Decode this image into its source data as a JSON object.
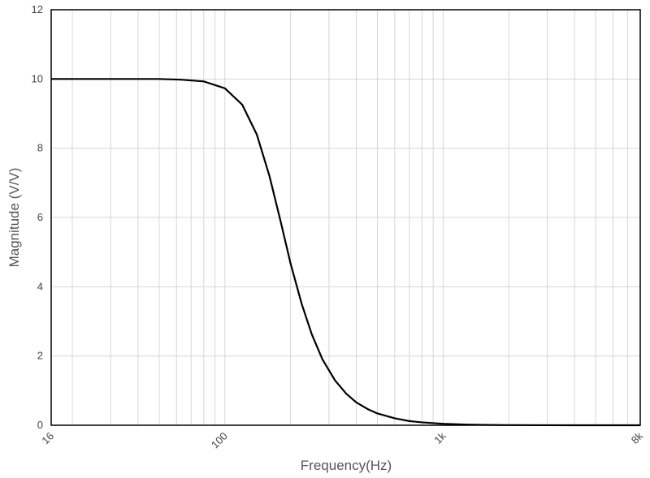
{
  "chart_data": {
    "type": "line",
    "x_label": "Frequency(Hz)",
    "y_label": "Magnitude (V/V)",
    "xscale": "log",
    "xlim": [
      16,
      8000
    ],
    "ylim": [
      0,
      12
    ],
    "xticks": [
      16,
      100,
      {
        "value": 1000,
        "label": "1k"
      },
      {
        "value": 8000,
        "label": "8k"
      }
    ],
    "x_minor_gridlines": [
      20,
      30,
      40,
      50,
      60,
      70,
      80,
      90,
      200,
      300,
      400,
      500,
      600,
      700,
      800,
      900,
      2000,
      3000,
      4000,
      5000,
      6000,
      7000
    ],
    "yticks": [
      0,
      2,
      4,
      6,
      8,
      10,
      12
    ],
    "grid": true,
    "x": [
      16,
      20,
      25,
      32,
      40,
      50,
      63,
      80,
      100,
      120,
      140,
      160,
      180,
      200,
      225,
      250,
      280,
      320,
      360,
      400,
      450,
      500,
      600,
      700,
      800,
      1000,
      1300,
      1600,
      2000,
      3000,
      4000,
      6000,
      8000
    ],
    "series": [
      {
        "color": "#000000",
        "values": [
          10.0,
          10.0,
          10.0,
          10.0,
          10.0,
          10.0,
          9.98,
          9.93,
          9.73,
          9.26,
          8.4,
          7.2,
          5.89,
          4.67,
          3.5,
          2.63,
          1.9,
          1.29,
          0.91,
          0.66,
          0.47,
          0.34,
          0.2,
          0.12,
          0.083,
          0.043,
          0.019,
          0.01,
          0.005,
          0.0016,
          0.0007,
          0.0002,
          0.0001
        ]
      }
    ]
  }
}
